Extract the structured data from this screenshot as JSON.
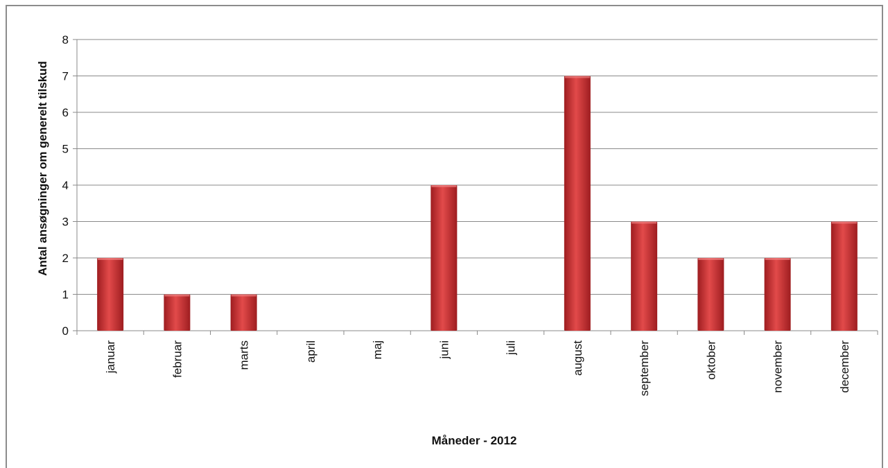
{
  "chart_data": {
    "type": "bar",
    "categories": [
      "januar",
      "februar",
      "marts",
      "april",
      "maj",
      "juni",
      "juli",
      "august",
      "september",
      "oktober",
      "november",
      "december"
    ],
    "values": [
      2,
      1,
      1,
      0,
      0,
      4,
      0,
      7,
      3,
      2,
      2,
      3
    ],
    "title": "",
    "xlabel": "Måneder - 2012",
    "ylabel": "Antal ansøgninger om generelt tilskud",
    "ylim": [
      0,
      8
    ],
    "yticks": [
      0,
      1,
      2,
      3,
      4,
      5,
      6,
      7,
      8
    ],
    "grid": true,
    "legend": "none",
    "bar_color": "#c0262a",
    "bar_color_light": "#e24a4a",
    "bar_color_dark": "#9e1d20"
  }
}
